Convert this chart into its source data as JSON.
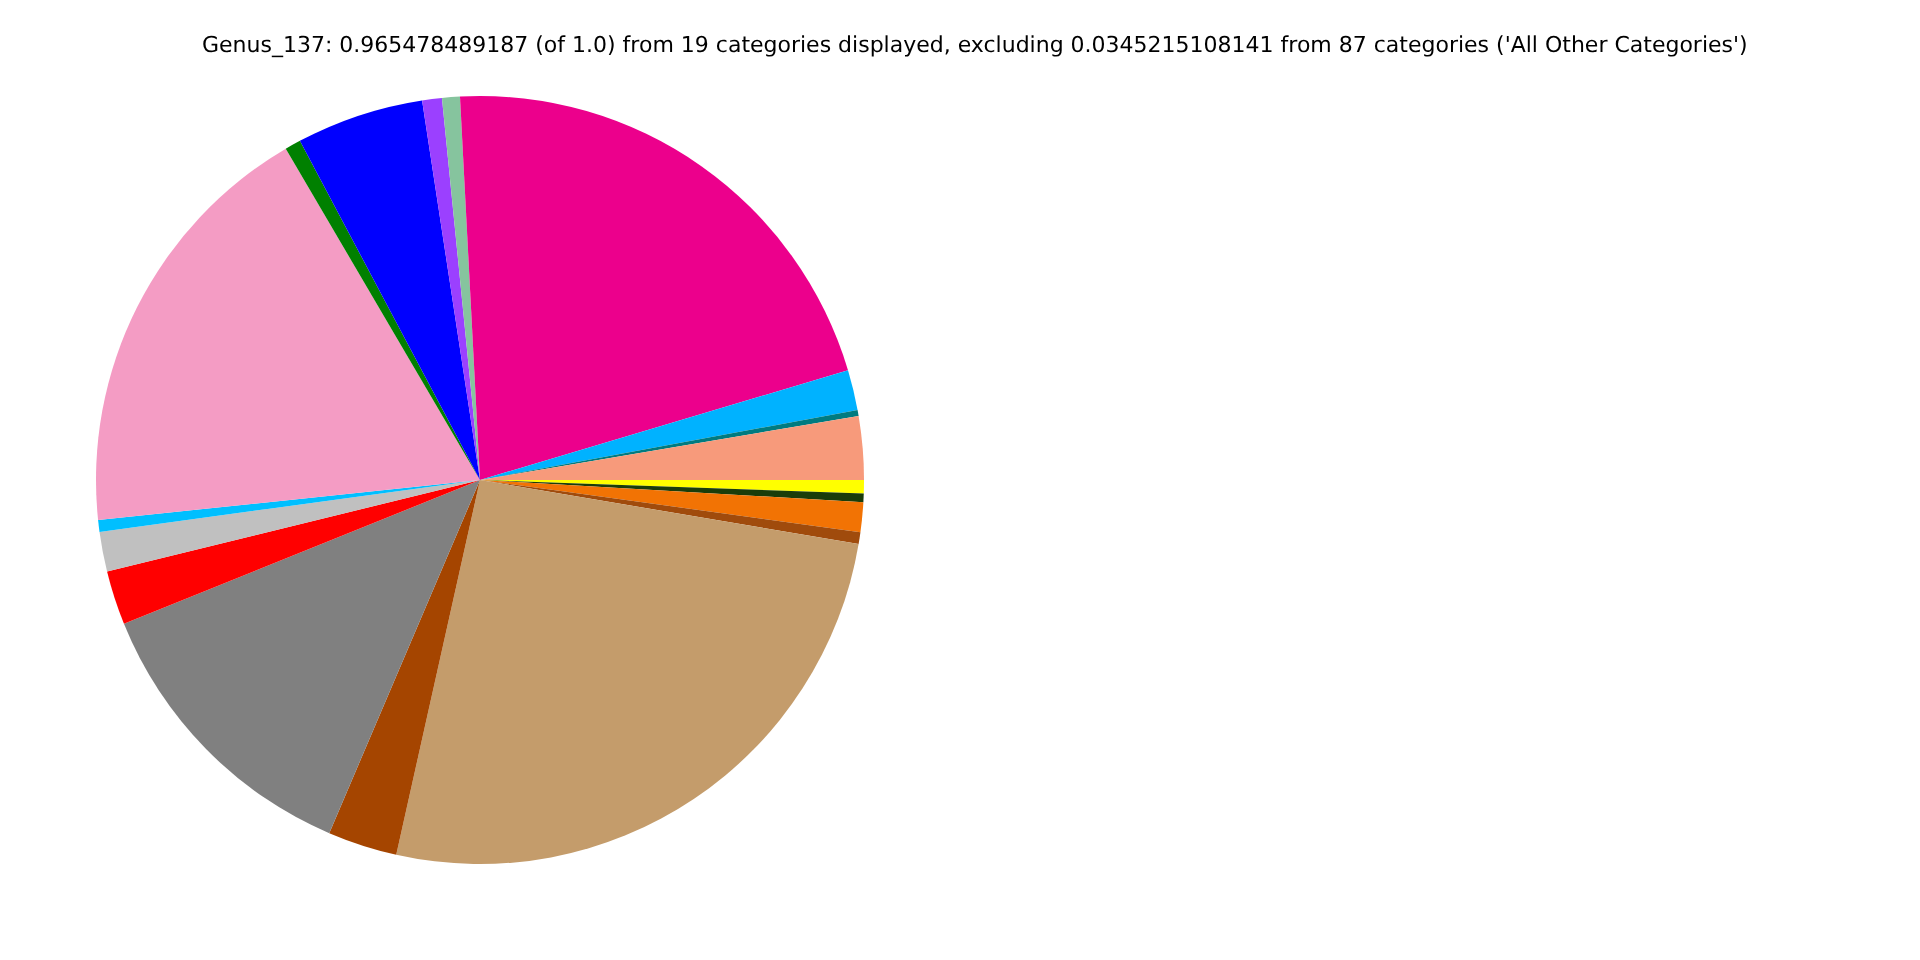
{
  "chart_data": {
    "type": "pie",
    "title": "Genus_137: 0.965478489187 (of 1.0) from 19 categories displayed, excluding 0.0345215108141 from 87 categories ('All Other Categories')",
    "categories": [
      null,
      null,
      null,
      null,
      null,
      null,
      null,
      null,
      null,
      null,
      null,
      null,
      null,
      null,
      null,
      null,
      null,
      null,
      null
    ],
    "values": [
      0.56,
      0.36,
      1.25,
      0.5,
      25.83,
      2.92,
      12.47,
      2.28,
      1.67,
      0.5,
      18.22,
      0.67,
      5.36,
      0.83,
      0.75,
      21.22,
      1.69,
      0.25,
      2.67
    ],
    "colors": [
      "#ffff00",
      "#1a3d0a",
      "#f27304",
      "#a04b0c",
      "#c49c6b",
      "#a54500",
      "#808080",
      "#ff0000",
      "#c0c0c0",
      "#00bfff",
      "#f49cc4",
      "#008000",
      "#0000ff",
      "#9b40ff",
      "#86c49e",
      "#ec008c",
      "#00b2ff",
      "#007b80",
      "#f79a7b"
    ]
  }
}
